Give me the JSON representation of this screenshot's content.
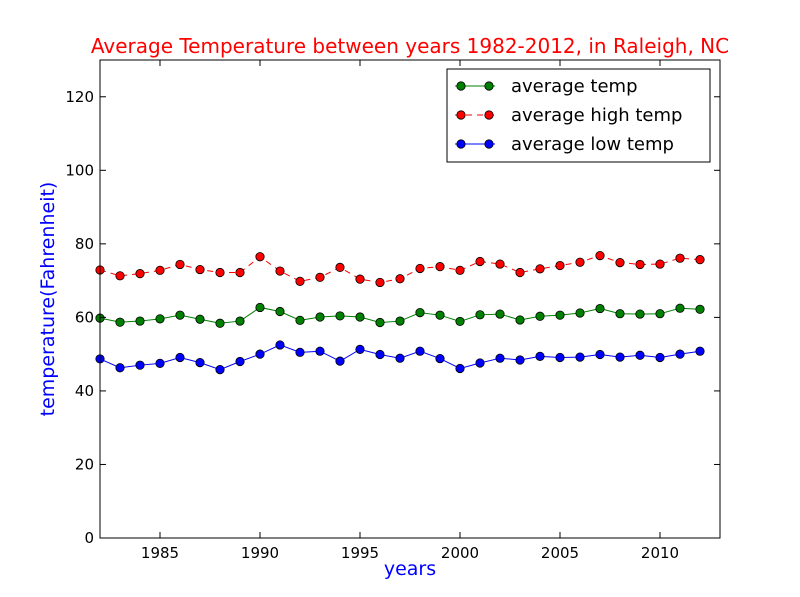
{
  "chart_data": {
    "type": "line",
    "title": "Average Temperature between years 1982-2012, in Raleigh, NC",
    "title_color": "#ff0000",
    "xlabel": "years",
    "ylabel": "temperature(Fahrenheit)",
    "axis_label_color": "#0000ff",
    "xlim": [
      1982,
      2013
    ],
    "ylim": [
      0,
      130
    ],
    "xticks": [
      "1985",
      "1990",
      "1995",
      "2000",
      "2005",
      "2010"
    ],
    "yticks": [
      "0",
      "20",
      "40",
      "60",
      "80",
      "100",
      "120"
    ],
    "grid": false,
    "legend_position": "top-right",
    "x": [
      1982,
      1983,
      1984,
      1985,
      1986,
      1987,
      1988,
      1989,
      1990,
      1991,
      1992,
      1993,
      1994,
      1995,
      1996,
      1997,
      1998,
      1999,
      2000,
      2001,
      2002,
      2003,
      2004,
      2005,
      2006,
      2007,
      2008,
      2009,
      2010,
      2011,
      2012
    ],
    "series": [
      {
        "name": "average temp",
        "color": "#008000",
        "line_style": "solid",
        "values": [
          59.8,
          58.7,
          59.0,
          59.6,
          60.6,
          59.5,
          58.4,
          59.0,
          62.7,
          61.6,
          59.2,
          60.1,
          60.4,
          60.1,
          58.6,
          59.0,
          61.3,
          60.6,
          58.9,
          60.7,
          60.9,
          59.3,
          60.3,
          60.6,
          61.2,
          62.4,
          61.0,
          60.9,
          61.0,
          62.5,
          62.2
        ]
      },
      {
        "name": "average high temp",
        "color": "#ff0000",
        "line_style": "dashed",
        "values": [
          72.9,
          71.3,
          71.9,
          72.8,
          74.4,
          73.0,
          72.2,
          72.2,
          76.5,
          72.6,
          69.8,
          70.9,
          73.6,
          70.4,
          69.5,
          70.5,
          73.3,
          73.8,
          72.8,
          75.2,
          74.5,
          72.2,
          73.2,
          74.1,
          75.0,
          76.8,
          74.9,
          74.4,
          74.5,
          76.1,
          75.7
        ]
      },
      {
        "name": "average low temp",
        "color": "#0000ff",
        "line_style": "solid",
        "values": [
          48.7,
          46.3,
          47.0,
          47.5,
          49.1,
          47.7,
          45.8,
          48.0,
          50.0,
          52.5,
          50.5,
          50.8,
          48.1,
          51.3,
          49.9,
          48.9,
          50.8,
          48.8,
          46.1,
          47.6,
          48.9,
          48.4,
          49.4,
          49.1,
          49.2,
          49.9,
          49.2,
          49.7,
          49.1,
          50.0,
          50.8
        ]
      }
    ]
  }
}
